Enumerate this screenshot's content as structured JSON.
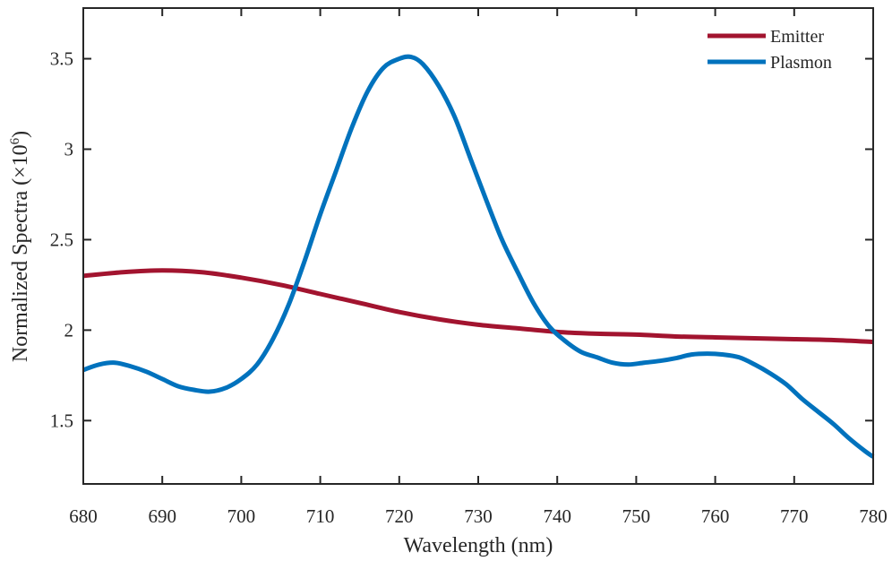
{
  "chart_data": {
    "type": "line",
    "title": "",
    "xlabel": "Wavelength (nm)",
    "ylabel": {
      "main": "Normalized Spectra (×10",
      "exponent": "6",
      "close": ")"
    },
    "xlim": [
      680,
      780
    ],
    "ylim": [
      1.15,
      3.78
    ],
    "xticks": [
      680,
      690,
      700,
      710,
      720,
      730,
      740,
      750,
      760,
      770,
      780
    ],
    "xtick_labels": [
      "680",
      "690",
      "700",
      "710",
      "720",
      "730",
      "740",
      "750",
      "760",
      "770",
      "780"
    ],
    "yticks": [
      1.5,
      2,
      2.5,
      3,
      3.5
    ],
    "ytick_labels": [
      "1.5",
      "2",
      "2.5",
      "3",
      "3.5"
    ],
    "grid": false,
    "legend_position": "top-right",
    "series": [
      {
        "name": "Emitter",
        "color": "#a2142f",
        "x": [
          680,
          685,
          690,
          695,
          700,
          705,
          710,
          715,
          720,
          725,
          730,
          735,
          740,
          745,
          750,
          755,
          760,
          765,
          770,
          775,
          780
        ],
        "y": [
          2.3,
          2.32,
          2.33,
          2.32,
          2.29,
          2.25,
          2.2,
          2.15,
          2.1,
          2.06,
          2.03,
          2.01,
          1.99,
          1.98,
          1.975,
          1.965,
          1.96,
          1.955,
          1.95,
          1.945,
          1.935
        ]
      },
      {
        "name": "Plasmon",
        "color": "#0072bd",
        "x": [
          680,
          682,
          684,
          686,
          688,
          690,
          692,
          694,
          696,
          698,
          700,
          702,
          704,
          706,
          708,
          710,
          712,
          714,
          716,
          718,
          720,
          721.5,
          723,
          725,
          727,
          729,
          731,
          733,
          735,
          737,
          739,
          741,
          743,
          745,
          747,
          749,
          751,
          753,
          755,
          757,
          759,
          761,
          763,
          765,
          767,
          769,
          771,
          773,
          775,
          777,
          779,
          780
        ],
        "y": [
          1.78,
          1.81,
          1.82,
          1.8,
          1.77,
          1.73,
          1.69,
          1.67,
          1.66,
          1.68,
          1.73,
          1.81,
          1.95,
          2.14,
          2.38,
          2.64,
          2.88,
          3.12,
          3.32,
          3.45,
          3.5,
          3.51,
          3.47,
          3.35,
          3.18,
          2.95,
          2.72,
          2.5,
          2.32,
          2.15,
          2.02,
          1.94,
          1.88,
          1.85,
          1.82,
          1.81,
          1.82,
          1.83,
          1.845,
          1.865,
          1.87,
          1.865,
          1.85,
          1.81,
          1.76,
          1.7,
          1.62,
          1.55,
          1.48,
          1.4,
          1.33,
          1.3
        ]
      }
    ]
  }
}
